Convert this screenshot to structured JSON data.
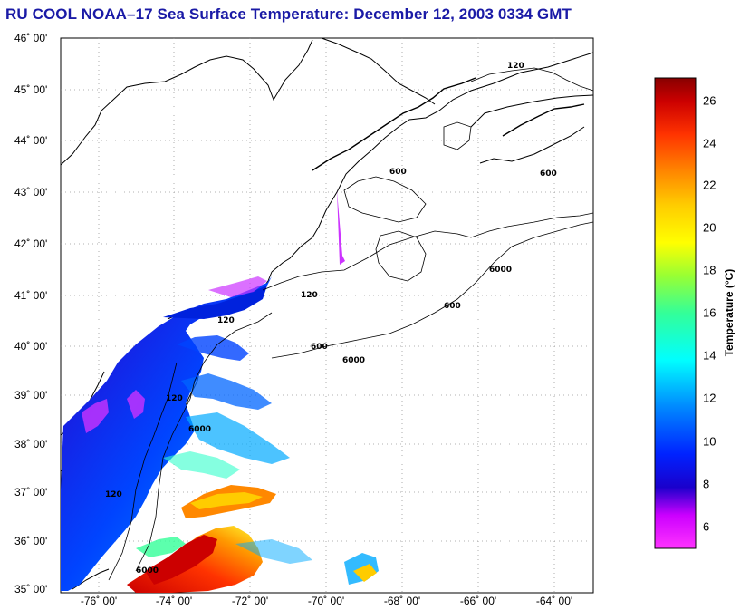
{
  "title": "RU COOL  NOAA–17  Sea Surface Temperature:  December 12, 2003 0334 GMT",
  "latitude_labels": [
    "46˚ 00'",
    "45˚ 00'",
    "44˚ 00'",
    "43˚ 00'",
    "42˚ 00'",
    "41˚ 00'",
    "40˚ 00'",
    "39˚ 00'",
    "38˚ 00'",
    "37˚ 00'",
    "36˚ 00'",
    "35˚ 00'"
  ],
  "longitude_labels": [
    "-76˚ 00'",
    "-74˚ 00'",
    "-72˚ 00'",
    "-70˚ 00'",
    "-68˚ 00'",
    "-66˚ 00'",
    "-64˚ 00'"
  ],
  "isobath_labels": [
    "120",
    "600",
    "6000"
  ],
  "colorbar": {
    "label": "Temperature (°C)",
    "ticks": [
      "26",
      "24",
      "22",
      "20",
      "18",
      "16",
      "14",
      "12",
      "10",
      "8",
      "6"
    ],
    "min": 5,
    "max": 27,
    "colors": [
      "#ff33ff",
      "#cc00ff",
      "#1a00cc",
      "#0033ff",
      "#0099ff",
      "#00ffff",
      "#33ff99",
      "#99ff33",
      "#ffff00",
      "#ffcc00",
      "#ff8800",
      "#ff3300",
      "#cc0000",
      "#880000"
    ]
  },
  "map_extent": {
    "lon": [
      -77,
      -63
    ],
    "lat": [
      35,
      46
    ]
  }
}
